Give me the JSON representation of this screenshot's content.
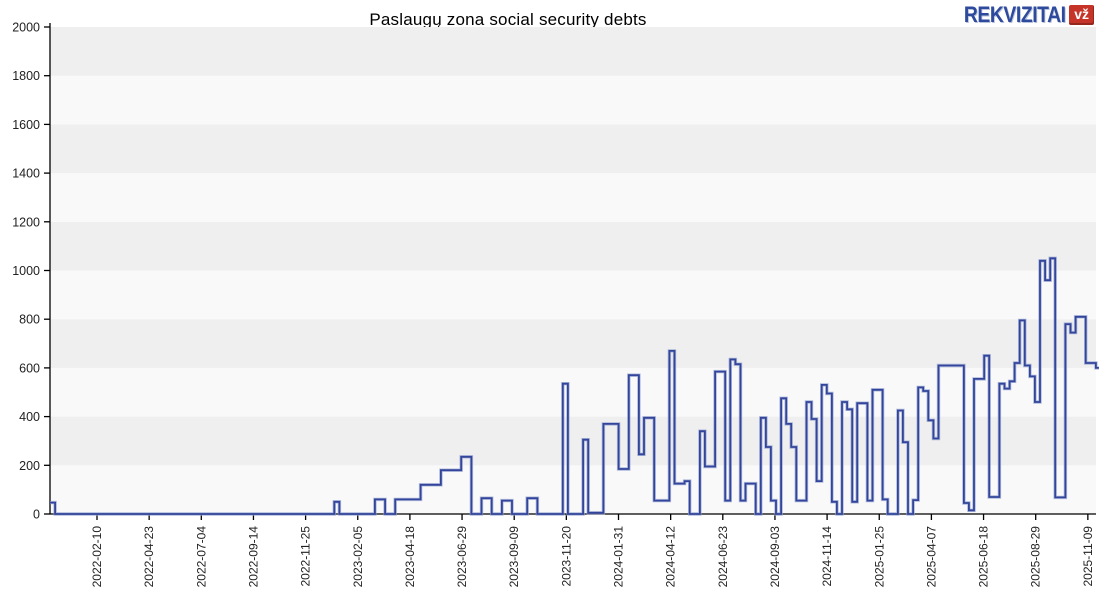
{
  "header": {
    "title": "Paslaugų zona social security debts",
    "logo_text": "REKVIZITAI",
    "logo_badge": "vž"
  },
  "chart_data": {
    "type": "line",
    "line_style": "step-after",
    "title": "Paslaugų zona social security debts",
    "xlabel": "",
    "ylabel": "",
    "ylim": [
      0,
      2000
    ],
    "yticks": [
      0,
      200,
      400,
      600,
      800,
      1000,
      1200,
      1400,
      1600,
      1800,
      2000
    ],
    "grid": "alternating-horizontal-bands",
    "legend": "none",
    "xtick_labels": [
      "2022-02-10",
      "2022-04-23",
      "2022-07-04",
      "2022-09-14",
      "2022-11-25",
      "2023-02-05",
      "2023-04-18",
      "2023-06-29",
      "2023-09-09",
      "2023-11-20",
      "2024-01-31",
      "2024-04-12",
      "2024-06-23",
      "2024-09-03",
      "2024-11-14",
      "2025-01-25",
      "2025-04-07",
      "2025-06-18",
      "2025-08-29",
      "2025-11-09"
    ],
    "x_mode": "weekly-index",
    "weekly_values": [
      47,
      0,
      0,
      0,
      0,
      0,
      0,
      0,
      0,
      0,
      0,
      0,
      0,
      0,
      0,
      0,
      0,
      0,
      0,
      0,
      0,
      0,
      0,
      0,
      0,
      0,
      0,
      0,
      0,
      0,
      0,
      0,
      0,
      0,
      0,
      0,
      0,
      0,
      0,
      0,
      0,
      0,
      0,
      0,
      0,
      0,
      0,
      0,
      0,
      0,
      0,
      0,
      0,
      0,
      0,
      0,
      50,
      0,
      0,
      0,
      0,
      0,
      0,
      0,
      60,
      60,
      0,
      0,
      60,
      60,
      60,
      60,
      60,
      120,
      120,
      120,
      120,
      180,
      180,
      180,
      180,
      235,
      235,
      0,
      0,
      65,
      65,
      0,
      0,
      55,
      55,
      0,
      0,
      0,
      65,
      65,
      0,
      0,
      0,
      0,
      0,
      535,
      0,
      0,
      0,
      305,
      5,
      5,
      5,
      370,
      370,
      370,
      185,
      185,
      570,
      570,
      245,
      395,
      395,
      55,
      55,
      55,
      670,
      125,
      125,
      135,
      0,
      0,
      340,
      195,
      195,
      585,
      585,
      55,
      635,
      615,
      55,
      125,
      125,
      0,
      395,
      275,
      55,
      0,
      475,
      370,
      275,
      55,
      55,
      460,
      390,
      135,
      530,
      495,
      50,
      0,
      460,
      430,
      50,
      455,
      455,
      55,
      510,
      510,
      60,
      0,
      0,
      425,
      295,
      0,
      57,
      520,
      505,
      385,
      310,
      610,
      610,
      610,
      610,
      610,
      45,
      15,
      555,
      555,
      650,
      70,
      70,
      535,
      515,
      545,
      620,
      795,
      610,
      565,
      460,
      1040,
      960,
      1050,
      68,
      68,
      780,
      745,
      810,
      810,
      620,
      620,
      600
    ],
    "colors": {
      "line_core": "#32459a",
      "line_halo": "#95a3d2",
      "band_dark": "#efefef",
      "band_light": "#f9f9f9",
      "axis": "#000000",
      "tick_label": "#222222",
      "logo_blue": "#2d4a9c",
      "logo_red": "#c63429"
    }
  }
}
